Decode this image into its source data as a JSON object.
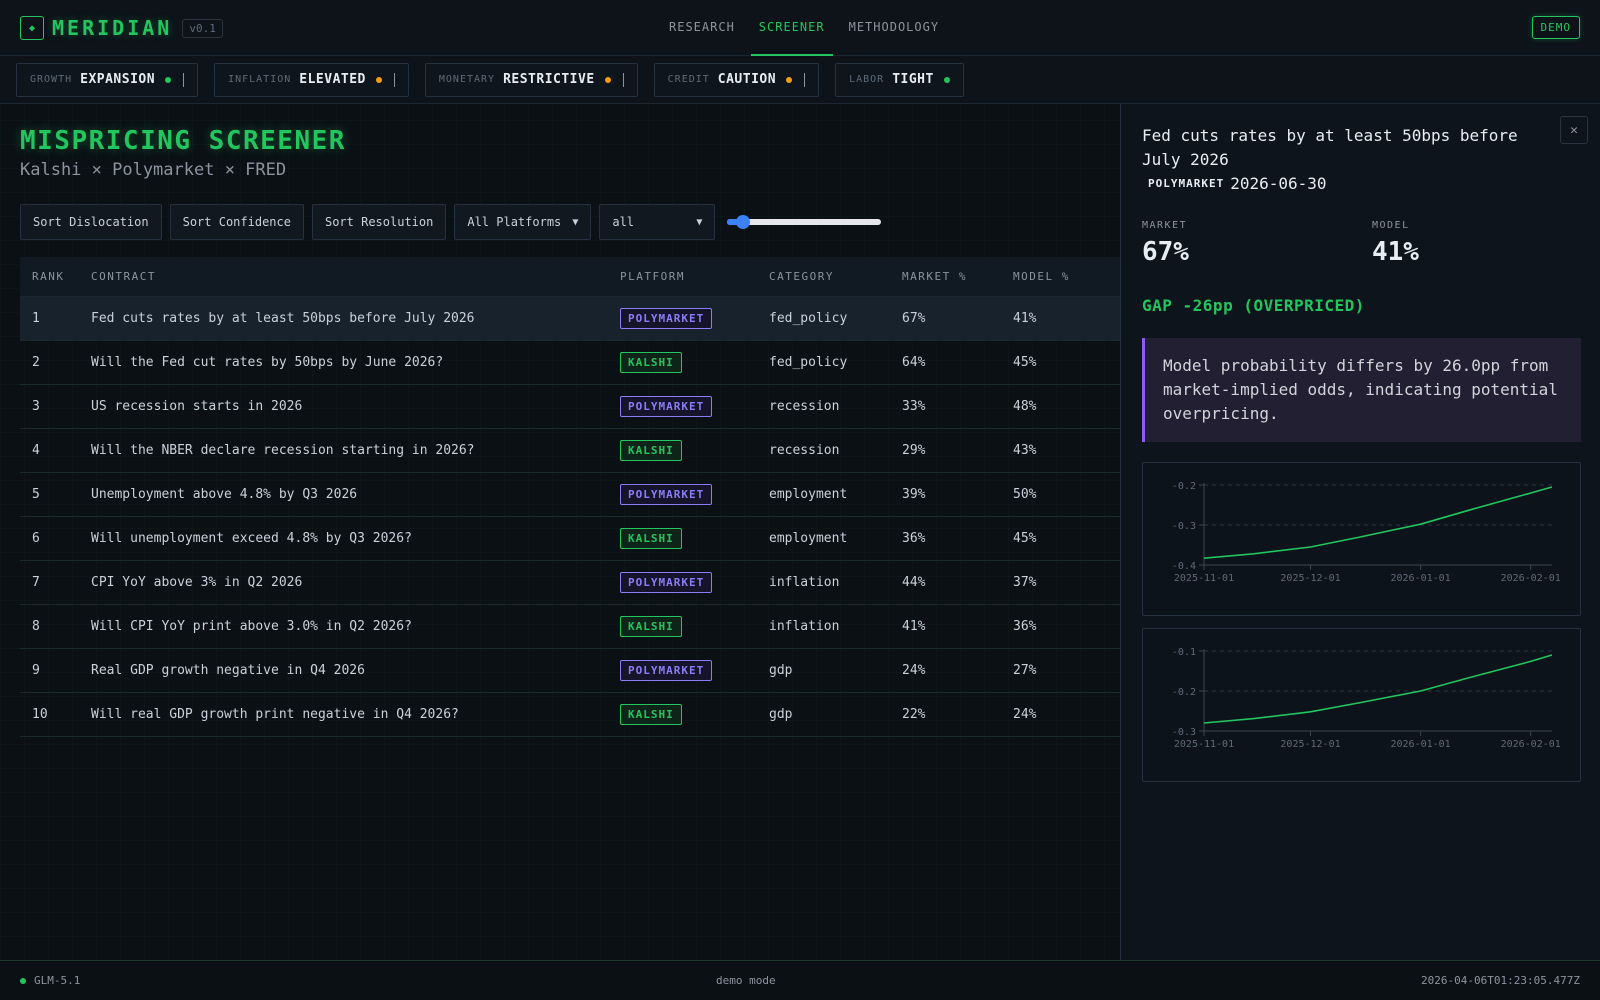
{
  "brand": {
    "icon": "diamond-icon",
    "name": "MERIDIAN",
    "version": "v0.1"
  },
  "nav": {
    "tabs": [
      {
        "label": "RESEARCH",
        "active": false
      },
      {
        "label": "SCREENER",
        "active": true
      },
      {
        "label": "METHODOLOGY",
        "active": false
      }
    ],
    "demo_label": "DEMO"
  },
  "regimes": [
    {
      "key": "GROWTH",
      "value": "EXPANSION",
      "color": "#22c55e"
    },
    {
      "key": "INFLATION",
      "value": "ELEVATED",
      "color": "#f59e0b"
    },
    {
      "key": "MONETARY",
      "value": "RESTRICTIVE",
      "color": "#f59e0b"
    },
    {
      "key": "CREDIT",
      "value": "CAUTION",
      "color": "#f59e0b"
    },
    {
      "key": "LABOR",
      "value": "TIGHT",
      "color": "#22c55e"
    }
  ],
  "screener": {
    "title": "MISPRICING SCREENER",
    "subtitle": "Kalshi × Polymarket × FRED",
    "sort_buttons": [
      "Sort Dislocation",
      "Sort Confidence",
      "Sort Resolution"
    ],
    "platform_filter": "All Platforms",
    "category_filter": "all",
    "threshold_slider": 0.1,
    "columns": [
      "RANK",
      "CONTRACT",
      "PLATFORM",
      "CATEGORY",
      "MARKET %",
      "MODEL %"
    ],
    "rows": [
      {
        "rank": "1",
        "contract": "Fed cuts rates by at least 50bps before July 2026",
        "platform": "POLYMARKET",
        "category": "fed_policy",
        "market": "67%",
        "model": "41%",
        "selected": true
      },
      {
        "rank": "2",
        "contract": "Will the Fed cut rates by 50bps by June 2026?",
        "platform": "KALSHI",
        "category": "fed_policy",
        "market": "64%",
        "model": "45%"
      },
      {
        "rank": "3",
        "contract": "US recession starts in 2026",
        "platform": "POLYMARKET",
        "category": "recession",
        "market": "33%",
        "model": "48%"
      },
      {
        "rank": "4",
        "contract": "Will the NBER declare recession starting in 2026?",
        "platform": "KALSHI",
        "category": "recession",
        "market": "29%",
        "model": "43%"
      },
      {
        "rank": "5",
        "contract": "Unemployment above 4.8% by Q3 2026",
        "platform": "POLYMARKET",
        "category": "employment",
        "market": "39%",
        "model": "50%"
      },
      {
        "rank": "6",
        "contract": "Will unemployment exceed 4.8% by Q3 2026?",
        "platform": "KALSHI",
        "category": "employment",
        "market": "36%",
        "model": "45%"
      },
      {
        "rank": "7",
        "contract": "CPI YoY above 3% in Q2 2026",
        "platform": "POLYMARKET",
        "category": "inflation",
        "market": "44%",
        "model": "37%"
      },
      {
        "rank": "8",
        "contract": "Will CPI YoY print above 3.0% in Q2 2026?",
        "platform": "KALSHI",
        "category": "inflation",
        "market": "41%",
        "model": "36%"
      },
      {
        "rank": "9",
        "contract": "Real GDP growth negative in Q4 2026",
        "platform": "POLYMARKET",
        "category": "gdp",
        "market": "24%",
        "model": "27%"
      },
      {
        "rank": "10",
        "contract": "Will real GDP growth print negative in Q4 2026?",
        "platform": "KALSHI",
        "category": "gdp",
        "market": "22%",
        "model": "24%"
      }
    ]
  },
  "platform_colors": {
    "POLYMARKET": {
      "text": "#8b7cf6",
      "border": "#8b7cf6",
      "bg": "#15142a"
    },
    "KALSHI": {
      "text": "#22c55e",
      "border": "#22c55e",
      "bg": "#0f2419"
    }
  },
  "detail": {
    "close_icon": "close-icon",
    "title": "Fed cuts rates by at least 50bps before July 2026",
    "platform": "POLYMARKET",
    "date": "2026-06-30",
    "market_label": "MARKET",
    "market_value": "67%",
    "model_label": "MODEL",
    "model_value": "41%",
    "gap": "GAP -26pp (OVERPRICED)",
    "explanation": "Model probability differs by 26.0pp from market-implied odds, indicating potential overpricing."
  },
  "chart_data": [
    {
      "type": "line",
      "x": [
        "2025-11-01",
        "2025-11-15",
        "2025-12-01",
        "2025-12-15",
        "2026-01-01",
        "2026-01-15",
        "2026-02-01",
        "2026-02-07"
      ],
      "series": [
        {
          "values": [
            -0.383,
            -0.372,
            -0.355,
            -0.33,
            -0.298,
            -0.262,
            -0.22,
            -0.205
          ]
        }
      ],
      "ylim": [
        -0.4,
        -0.2
      ],
      "yticks": [
        "-0.2",
        "-0.3",
        "-0.4"
      ],
      "xticks": [
        "2025-11-01",
        "2025-12-01",
        "2026-01-01",
        "2026-02-01"
      ],
      "grid": true,
      "color": "#22c55e"
    },
    {
      "type": "line",
      "x": [
        "2025-11-01",
        "2025-11-15",
        "2025-12-01",
        "2025-12-15",
        "2026-01-01",
        "2026-01-15",
        "2026-02-01",
        "2026-02-07"
      ],
      "series": [
        {
          "values": [
            -0.28,
            -0.269,
            -0.252,
            -0.229,
            -0.2,
            -0.166,
            -0.126,
            -0.11
          ]
        }
      ],
      "ylim": [
        -0.3,
        -0.1
      ],
      "yticks": [
        "-0.1",
        "-0.2",
        "-0.3"
      ],
      "xticks": [
        "2025-11-01",
        "2025-12-01",
        "2026-01-01",
        "2026-02-01"
      ],
      "grid": true,
      "color": "#22c55e"
    }
  ],
  "status": {
    "model": "GLM-5.1",
    "mode": "demo mode",
    "timestamp": "2026-04-06T01:23:05.477Z"
  }
}
